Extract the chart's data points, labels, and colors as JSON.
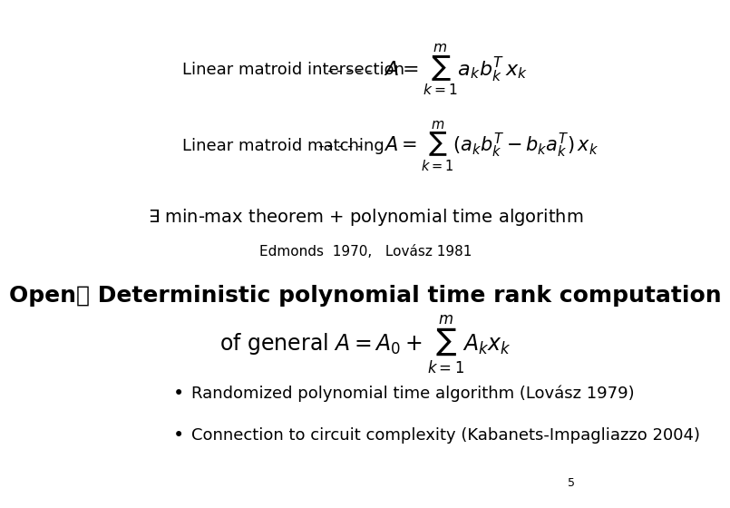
{
  "background_color": "#ffffff",
  "page_number": "5",
  "line1_text": "Linear matroid intersection",
  "line1_dashes": "-----",
  "line1_formula": "$A = \\sum_{k=1}^{m} a_k b_k^T\\, x_k$",
  "line2_text": "Linear matroid matching",
  "line2_dashes": "-----",
  "line2_formula": "$A = \\sum_{k=1}^{m} (a_k b_k^T - b_k a_k^T)\\, x_k$",
  "minmax_text": "$\\exists$ min-max theorem + polynomial time algorithm",
  "citation_text": "Edmonds  1970,   Lovász 1981",
  "open_text": "Open： Deterministic polynomial time rank computation",
  "general_formula": "of general $A = A_0 + \\sum_{k=1}^{m} A_k x_k$",
  "bullet1": "Randomized polynomial time algorithm (Lovász 1979)",
  "bullet2": "Connection to circuit complexity (Kabanets-Impagliazzo 2004)",
  "text_color": "#000000",
  "font_size_main": 13,
  "font_size_open": 18,
  "font_size_general": 16,
  "font_size_bullet": 13,
  "font_size_citation": 10,
  "font_size_minmax": 14
}
